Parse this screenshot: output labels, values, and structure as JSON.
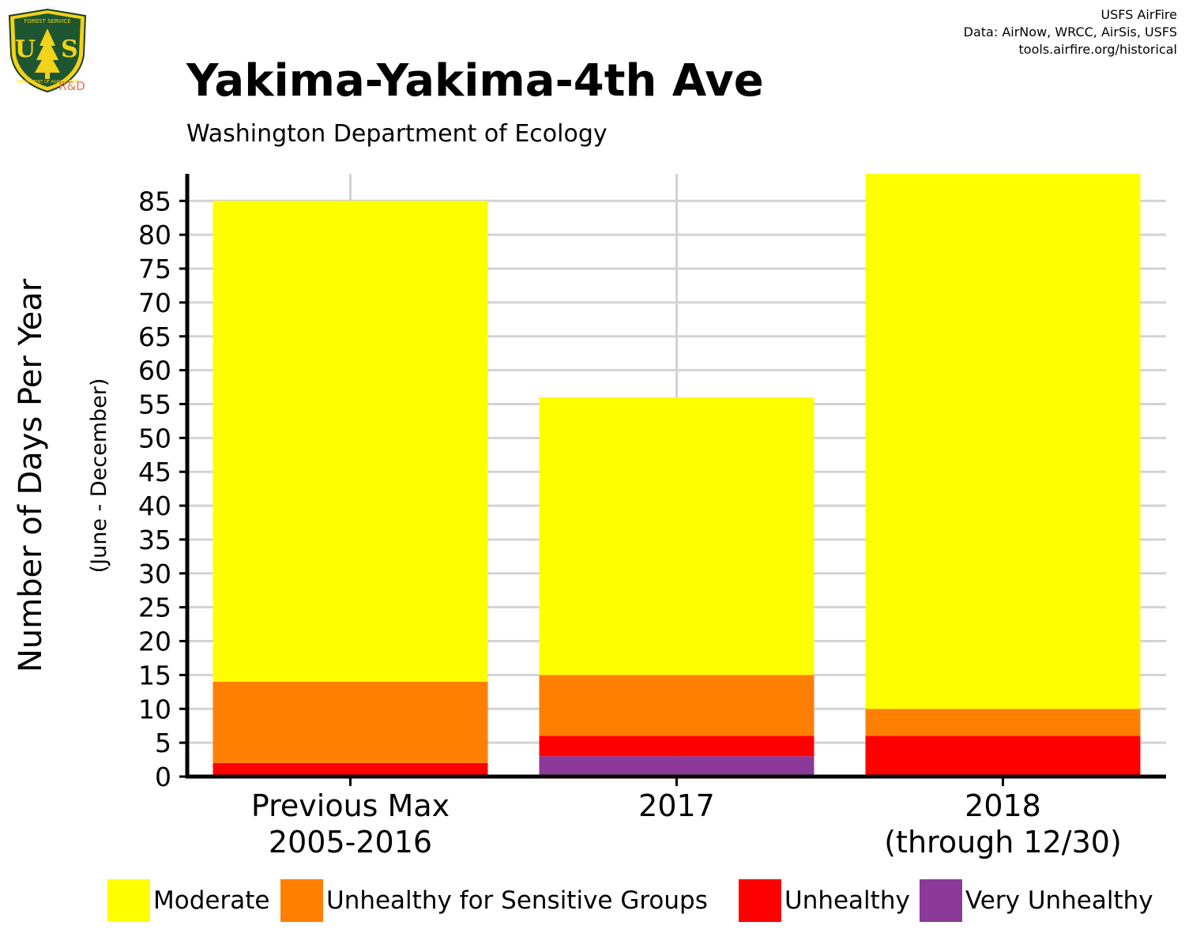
{
  "header": {
    "credits": [
      "USFS AirFire",
      "Data: AirNow, WRCC, AirSis, USFS",
      "tools.airfire.org/historical"
    ],
    "logo_text": "R&D",
    "logo_lettering": [
      "FOREST SERVICE",
      "U",
      "S",
      "DEPARTMENT OF AGRICULTURE"
    ]
  },
  "chart_data": {
    "type": "bar",
    "stacked": true,
    "title": "Yakima-Yakima-4th Ave",
    "subtitle": "Washington Department of Ecology",
    "ylabel": "Number of Days Per Year",
    "ylabel_sub": "(June - December)",
    "xlabel": "",
    "ylim": [
      0,
      89
    ],
    "yticks": [
      0,
      5,
      10,
      15,
      20,
      25,
      30,
      35,
      40,
      45,
      50,
      55,
      60,
      65,
      70,
      75,
      80,
      85
    ],
    "grid": true,
    "legend_position": "bottom",
    "categories": [
      [
        "Previous Max",
        "2005-2016"
      ],
      [
        "2017"
      ],
      [
        "2018",
        "(through 12/30)"
      ]
    ],
    "series": [
      {
        "name": "Very Unhealthy",
        "color": "#8B3A99",
        "values": [
          0,
          3,
          0
        ]
      },
      {
        "name": "Unhealthy",
        "color": "#FF0000",
        "values": [
          2,
          3,
          6
        ]
      },
      {
        "name": "Unhealthy for Sensitive Groups",
        "color": "#FF7F00",
        "values": [
          12,
          9,
          4
        ]
      },
      {
        "name": "Moderate",
        "color": "#FFFF00",
        "values": [
          71,
          41,
          79
        ]
      }
    ],
    "legend_order": [
      "Moderate",
      "Unhealthy for Sensitive Groups",
      "Unhealthy",
      "Very Unhealthy"
    ]
  }
}
